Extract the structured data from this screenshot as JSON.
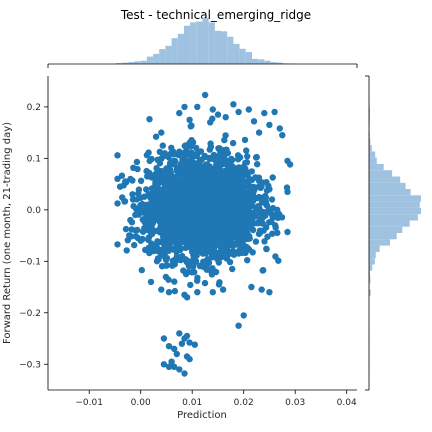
{
  "chart_data": {
    "type": "scatter",
    "title": "Test - technical_emerging_ridge",
    "xlabel": "Prediction",
    "ylabel": "Forward Return (one month, 21-trading day)",
    "xlim": [
      -0.018,
      0.042
    ],
    "ylim": [
      -0.35,
      0.26
    ],
    "x_ticks": [
      -0.01,
      0.0,
      0.01,
      0.02,
      0.03,
      0.04
    ],
    "x_tick_labels": [
      "−0.01",
      "0.00",
      "0.01",
      "0.02",
      "0.03",
      "0.04"
    ],
    "y_ticks": [
      -0.3,
      -0.2,
      -0.1,
      0.0,
      0.1,
      0.2
    ],
    "y_tick_labels": [
      "−0.3",
      "−0.2",
      "−0.1",
      "0.0",
      "0.1",
      "0.2"
    ],
    "grid": false,
    "marginal_histograms": true,
    "colors": {
      "points": "#1f77b4",
      "histogram": "#9fc2e0"
    },
    "series": [
      {
        "main_cluster": {
          "x_center": 0.012,
          "x_sd": 0.0052,
          "y_center": 0.005,
          "y_sd": 0.048,
          "count": 3000
        },
        "points": [
          [
            0.0125,
            0.223
          ],
          [
            0.018,
            0.205
          ],
          [
            0.011,
            0.2
          ],
          [
            0.0085,
            0.2
          ],
          [
            0.014,
            0.195
          ],
          [
            0.021,
            0.195
          ],
          [
            0.019,
            0.19
          ],
          [
            0.026,
            0.19
          ],
          [
            0.024,
            0.188
          ],
          [
            0.0075,
            0.188
          ],
          [
            0.015,
            0.185
          ],
          [
            0.0165,
            0.18
          ],
          [
            0.022,
            0.172
          ],
          [
            0.0095,
            0.175
          ],
          [
            0.025,
            0.165
          ],
          [
            0.0135,
            0.17
          ],
          [
            0.027,
            0.158
          ],
          [
            0.023,
            0.15
          ],
          [
            0.004,
            0.15
          ],
          [
            0.003,
            0.142
          ],
          [
            0.0275,
            0.145
          ],
          [
            0.0285,
            0.095
          ],
          [
            0.029,
            0.088
          ],
          [
            0.0285,
            0.035
          ],
          [
            0.0255,
            0.02
          ],
          [
            0.0265,
            0.0
          ],
          [
            -0.004,
            0.045
          ],
          [
            -0.003,
            0.055
          ],
          [
            -0.002,
            0.06
          ],
          [
            -0.0015,
            0.02
          ],
          [
            -0.002,
            -0.02
          ],
          [
            -0.001,
            -0.04
          ],
          [
            -0.0005,
            -0.055
          ],
          [
            0.0,
            -0.06
          ],
          [
            0.0215,
            -0.15
          ],
          [
            0.0235,
            -0.155
          ],
          [
            0.025,
            -0.16
          ],
          [
            0.02,
            -0.205
          ],
          [
            0.019,
            -0.225
          ],
          [
            0.002,
            -0.14
          ],
          [
            0.004,
            -0.155
          ],
          [
            0.0055,
            -0.16
          ],
          [
            0.0085,
            -0.165
          ],
          [
            0.011,
            -0.16
          ],
          [
            0.014,
            -0.16
          ],
          [
            0.016,
            -0.155
          ],
          [
            0.0045,
            -0.25
          ],
          [
            0.0055,
            -0.265
          ],
          [
            0.0065,
            -0.27
          ],
          [
            0.0075,
            -0.24
          ],
          [
            0.0085,
            -0.25
          ],
          [
            0.009,
            -0.285
          ],
          [
            0.0095,
            -0.258
          ],
          [
            0.008,
            -0.26
          ],
          [
            0.007,
            -0.28
          ],
          [
            0.0065,
            -0.305
          ],
          [
            0.0045,
            -0.3
          ],
          [
            0.0055,
            -0.305
          ],
          [
            0.0075,
            -0.31
          ],
          [
            0.0085,
            -0.318
          ],
          [
            0.0095,
            -0.29
          ],
          [
            0.006,
            -0.295
          ],
          [
            0.0105,
            -0.262
          ],
          [
            0.009,
            -0.245
          ]
        ]
      }
    ]
  }
}
